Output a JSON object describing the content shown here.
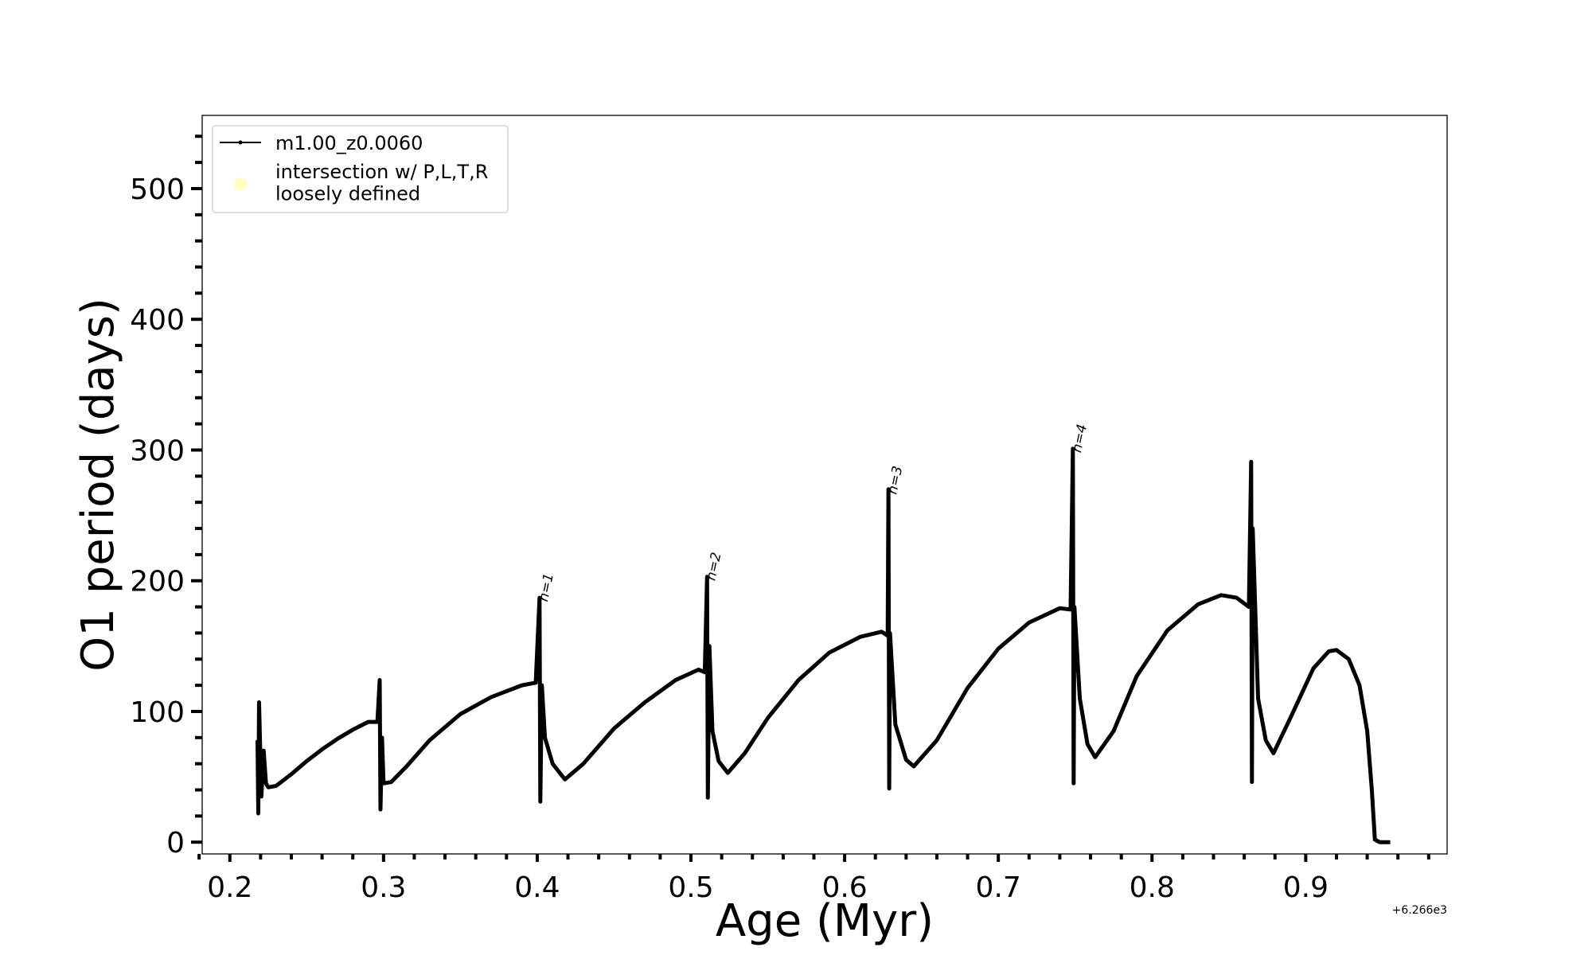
{
  "chart_data": {
    "type": "line",
    "xlabel": "Age (Myr)",
    "ylabel": "O1 period (days)",
    "x_offset_label": "+6.266e3",
    "xlim": [
      0.182,
      0.992
    ],
    "ylim": [
      -9,
      556
    ],
    "xticks": [
      0.2,
      0.3,
      0.4,
      0.5,
      0.6,
      0.7,
      0.8,
      0.9
    ],
    "xminorticks": [
      0.18,
      0.22,
      0.24,
      0.26,
      0.28,
      0.32,
      0.34,
      0.36,
      0.38,
      0.42,
      0.44,
      0.46,
      0.48,
      0.52,
      0.54,
      0.56,
      0.58,
      0.62,
      0.64,
      0.66,
      0.68,
      0.72,
      0.74,
      0.76,
      0.78,
      0.82,
      0.84,
      0.86,
      0.88,
      0.92,
      0.94,
      0.96,
      0.98
    ],
    "yticks": [
      0,
      100,
      200,
      300,
      400,
      500
    ],
    "yminorticks": [
      20,
      40,
      60,
      80,
      120,
      140,
      160,
      180,
      220,
      240,
      260,
      280,
      320,
      340,
      360,
      380,
      420,
      440,
      460,
      480,
      520,
      540
    ],
    "legend": "upper left",
    "series": [
      {
        "name": "m1.00_z0.0060",
        "color": "#000000",
        "x": [
          0.218,
          0.2185,
          0.219,
          0.2205,
          0.222,
          0.2235,
          0.225,
          0.23,
          0.24,
          0.25,
          0.26,
          0.27,
          0.28,
          0.29,
          0.296,
          0.2975,
          0.298,
          0.299,
          0.3,
          0.305,
          0.315,
          0.33,
          0.35,
          0.37,
          0.39,
          0.399,
          0.4015,
          0.402,
          0.403,
          0.405,
          0.41,
          0.418,
          0.43,
          0.45,
          0.47,
          0.49,
          0.505,
          0.509,
          0.5105,
          0.511,
          0.512,
          0.514,
          0.518,
          0.524,
          0.535,
          0.55,
          0.57,
          0.59,
          0.61,
          0.624,
          0.628,
          0.6285,
          0.629,
          0.6295,
          0.633,
          0.64,
          0.645,
          0.66,
          0.68,
          0.7,
          0.72,
          0.74,
          0.747,
          0.7485,
          0.749,
          0.7495,
          0.753,
          0.758,
          0.763,
          0.775,
          0.79,
          0.81,
          0.83,
          0.845,
          0.855,
          0.863,
          0.8645,
          0.865,
          0.8655,
          0.869,
          0.874,
          0.879,
          0.89,
          0.905,
          0.915,
          0.92,
          0.928,
          0.935,
          0.94,
          0.943,
          0.945,
          0.948,
          0.955
        ],
        "values": [
          78,
          22,
          107,
          35,
          70,
          45,
          42,
          43,
          52,
          62,
          71,
          79,
          86,
          92,
          92,
          124,
          25,
          80,
          45,
          46,
          58,
          78,
          98,
          111,
          120,
          122,
          187,
          31,
          120,
          80,
          60,
          48,
          60,
          87,
          107,
          124,
          132,
          130,
          203,
          34,
          150,
          85,
          62,
          53,
          68,
          95,
          124,
          145,
          157,
          161,
          158,
          270,
          41,
          160,
          90,
          63,
          58,
          78,
          118,
          148,
          168,
          179,
          178,
          301,
          45,
          180,
          110,
          75,
          65,
          85,
          127,
          162,
          182,
          189,
          187,
          180,
          291,
          46,
          240,
          110,
          78,
          68,
          95,
          133,
          146,
          147,
          140,
          120,
          85,
          40,
          2,
          0,
          0
        ]
      }
    ],
    "markers": {
      "name": "intersection w/ P,L,T,R\nloosely defined",
      "color": "#ffff99"
    },
    "annotations": [
      {
        "text": "n=1",
        "x": 0.4035,
        "y": 186
      },
      {
        "text": "n=2",
        "x": 0.5125,
        "y": 202
      },
      {
        "text": "n=3",
        "x": 0.6305,
        "y": 268
      },
      {
        "text": "n=4",
        "x": 0.7505,
        "y": 300
      }
    ]
  }
}
